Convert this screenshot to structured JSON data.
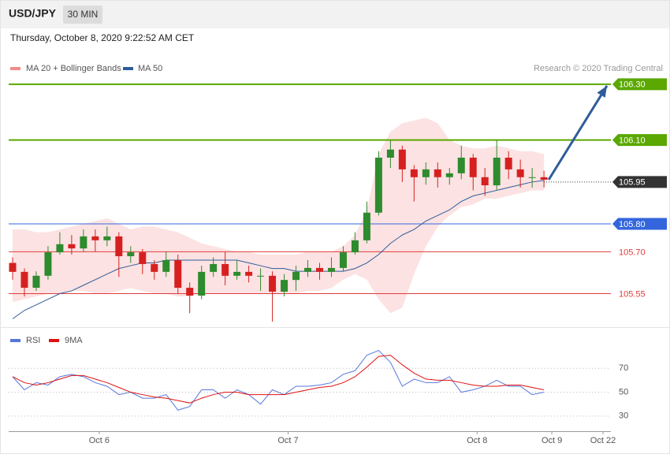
{
  "header": {
    "symbol": "USD/JPY",
    "interval": "30 MIN",
    "timestamp": "Thursday, October 8, 2020 9:22:52 AM CET",
    "note": "Research © 2020 Trading Central"
  },
  "chart_data": [
    {
      "type": "candlestick",
      "up_color": "#2e8b2e",
      "down_color": "#d62020",
      "x": [
        1,
        4,
        7,
        10,
        13,
        16,
        19,
        22,
        25,
        28,
        31,
        34,
        37,
        40,
        43,
        46,
        49,
        52,
        55,
        58,
        61,
        64,
        67,
        70,
        73,
        76,
        79,
        82,
        85,
        88,
        91,
        94,
        97,
        100,
        103,
        106,
        109,
        112,
        115,
        118,
        121,
        124,
        127,
        130,
        133,
        136
      ],
      "open": [
        105.66,
        105.628,
        105.571,
        105.614,
        105.698,
        105.727,
        105.712,
        105.755,
        105.741,
        105.755,
        105.684,
        105.698,
        105.656,
        105.628,
        105.67,
        105.571,
        105.543,
        105.628,
        105.656,
        105.614,
        105.628,
        105.614,
        105.614,
        105.557,
        105.599,
        105.628,
        105.642,
        105.628,
        105.642,
        105.698,
        105.741,
        105.84,
        106.037,
        106.066,
        105.995,
        105.967,
        105.995,
        105.967,
        105.981,
        106.037,
        105.967,
        105.938,
        106.037,
        105.995,
        105.967,
        105.967
      ],
      "high": [
        105.68,
        105.64,
        105.63,
        105.72,
        105.77,
        105.76,
        105.78,
        105.78,
        105.79,
        105.77,
        105.72,
        105.71,
        105.67,
        105.7,
        105.69,
        105.59,
        105.65,
        105.68,
        105.7,
        105.67,
        105.65,
        105.64,
        105.63,
        105.62,
        105.65,
        105.67,
        105.66,
        105.68,
        105.72,
        105.77,
        105.88,
        106.06,
        106.1,
        106.08,
        106.01,
        106.02,
        106.02,
        106.0,
        106.08,
        106.05,
        106.0,
        106.1,
        106.06,
        106.03,
        106.0,
        105.99
      ],
      "low": [
        105.6,
        105.54,
        105.56,
        105.6,
        105.69,
        105.69,
        105.7,
        105.7,
        105.72,
        105.61,
        105.66,
        105.62,
        105.6,
        105.61,
        105.55,
        105.48,
        105.53,
        105.61,
        105.58,
        105.6,
        105.59,
        105.56,
        105.45,
        105.54,
        105.56,
        105.61,
        105.6,
        105.61,
        105.63,
        105.69,
        105.73,
        105.83,
        106.0,
        105.95,
        105.88,
        105.94,
        105.93,
        105.94,
        105.96,
        105.92,
        105.9,
        105.92,
        105.96,
        105.93,
        105.93,
        105.93
      ],
      "close": [
        105.628,
        105.571,
        105.614,
        105.698,
        105.727,
        105.712,
        105.755,
        105.741,
        105.755,
        105.684,
        105.698,
        105.656,
        105.628,
        105.67,
        105.571,
        105.543,
        105.628,
        105.656,
        105.614,
        105.628,
        105.614,
        105.614,
        105.557,
        105.599,
        105.628,
        105.642,
        105.628,
        105.642,
        105.698,
        105.741,
        105.84,
        106.037,
        106.066,
        105.995,
        105.967,
        105.995,
        105.967,
        105.981,
        106.037,
        105.967,
        105.938,
        106.037,
        105.995,
        105.967,
        105.967,
        105.958
      ],
      "bands": {
        "name": "MA 20 + Bollinger Bands",
        "color": "#f48a8a",
        "upper": [
          105.78,
          105.78,
          105.77,
          105.77,
          105.78,
          105.79,
          105.8,
          105.81,
          105.82,
          105.8,
          105.78,
          105.79,
          105.79,
          105.78,
          105.77,
          105.75,
          105.73,
          105.72,
          105.71,
          105.7,
          105.7,
          105.69,
          105.69,
          105.69,
          105.69,
          105.7,
          105.7,
          105.7,
          105.72,
          105.76,
          105.85,
          106.05,
          106.13,
          106.16,
          106.17,
          106.18,
          106.16,
          106.1,
          106.08,
          106.07,
          106.07,
          106.08,
          106.07,
          106.06,
          106.06,
          106.05
        ],
        "lower": [
          105.52,
          105.53,
          105.54,
          105.55,
          105.55,
          105.56,
          105.56,
          105.55,
          105.55,
          105.56,
          105.57,
          105.56,
          105.55,
          105.55,
          105.54,
          105.54,
          105.55,
          105.55,
          105.55,
          105.55,
          105.55,
          105.55,
          105.55,
          105.55,
          105.55,
          105.56,
          105.56,
          105.57,
          105.6,
          105.62,
          105.6,
          105.53,
          105.48,
          105.5,
          105.62,
          105.72,
          105.79,
          105.83,
          105.86,
          105.87,
          105.89,
          105.89,
          105.9,
          105.91,
          105.92,
          105.92
        ]
      },
      "series": [
        {
          "name": "MA 50",
          "color": "#2e5c9a",
          "values": [
            105.46,
            105.49,
            105.51,
            105.53,
            105.55,
            105.56,
            105.58,
            105.6,
            105.62,
            105.64,
            105.65,
            105.66,
            105.66,
            105.67,
            105.67,
            105.67,
            105.67,
            105.67,
            105.67,
            105.67,
            105.66,
            105.65,
            105.64,
            105.64,
            105.63,
            105.63,
            105.63,
            105.63,
            105.63,
            105.64,
            105.66,
            105.69,
            105.73,
            105.76,
            105.78,
            105.81,
            105.83,
            105.85,
            105.88,
            105.9,
            105.91,
            105.92,
            105.93,
            105.94,
            105.95,
            105.955
          ]
        }
      ],
      "levels": [
        {
          "value": 106.3,
          "label": "106.30",
          "color": "#5aa800",
          "style": "solid",
          "box": true
        },
        {
          "value": 106.1,
          "label": "106.10",
          "color": "#5aa800",
          "style": "solid",
          "box": true
        },
        {
          "value": 105.95,
          "color": "#333333",
          "style": "dotted",
          "box": true
        },
        {
          "value": 105.8,
          "label": "105.80",
          "color": "#3366dd",
          "style": "solid",
          "box": true
        },
        {
          "value": 105.7,
          "label": "105.70",
          "color": "#e03c3c",
          "style": "solid",
          "box": false
        },
        {
          "value": 105.55,
          "color": "#e03c3c",
          "style": "solid",
          "box": false
        }
      ],
      "xlim": [
        0,
        153
      ],
      "ylim": [
        105.43,
        106.5
      ]
    },
    {
      "type": "line",
      "x": [
        1,
        4,
        7,
        10,
        13,
        16,
        19,
        22,
        25,
        28,
        31,
        34,
        37,
        40,
        43,
        46,
        49,
        52,
        55,
        58,
        61,
        64,
        67,
        70,
        73,
        76,
        79,
        82,
        85,
        88,
        91,
        94,
        97,
        100,
        103,
        106,
        109,
        112,
        115,
        118,
        121,
        124,
        127,
        130,
        133,
        136
      ],
      "series": [
        {
          "name": "RSI",
          "color": "#5577dd",
          "values": [
            63,
            52,
            58,
            56,
            63,
            65,
            63,
            58,
            55,
            48,
            50,
            45,
            45,
            48,
            35,
            38,
            52,
            52,
            45,
            52,
            48,
            40,
            52,
            48,
            55,
            55,
            56,
            58,
            65,
            68,
            81,
            85,
            75,
            55,
            61,
            58,
            58,
            63,
            50,
            52,
            55,
            60,
            55,
            55,
            48,
            50
          ]
        },
        {
          "name": "9MA",
          "color": "#e01010",
          "values": [
            63,
            58,
            56,
            58,
            61,
            64,
            64,
            61,
            58,
            54,
            50,
            48,
            46,
            45,
            43,
            41,
            45,
            48,
            50,
            50,
            48,
            48,
            48,
            48,
            50,
            52,
            54,
            55,
            58,
            63,
            71,
            80,
            81,
            73,
            66,
            61,
            60,
            60,
            58,
            56,
            55,
            55,
            56,
            56,
            54,
            52
          ]
        }
      ],
      "xlim": [
        0,
        153
      ],
      "ylim": [
        18,
        88
      ],
      "yticks": [
        30,
        50,
        70
      ],
      "grid": "dotted",
      "xticks": [
        {
          "value": 23,
          "label": "Oct 6"
        },
        {
          "value": 71,
          "label": "Oct 7"
        },
        {
          "value": 119,
          "label": "Oct 8"
        },
        {
          "value": 138,
          "label": "Oct 9"
        },
        {
          "value": 151,
          "label": "Oct 22"
        }
      ]
    }
  ]
}
